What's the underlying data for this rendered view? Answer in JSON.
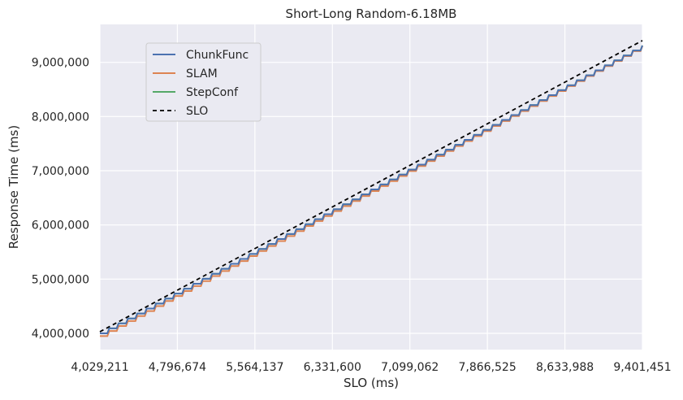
{
  "chart_data": {
    "type": "line",
    "title": "Short-Long Random-6.18MB",
    "xlabel": "SLO (ms)",
    "ylabel": "Response Time (ms)",
    "xlim": [
      4029211,
      9401451
    ],
    "ylim": [
      3700000,
      9700000
    ],
    "xticks": [
      4029211,
      4796674,
      5564137,
      6331600,
      7099062,
      7866525,
      8633988,
      9401451
    ],
    "xtick_labels": [
      "4,029,211",
      "4,796,674",
      "5,564,137",
      "6,331,600",
      "7,099,062",
      "7,866,525",
      "8,633,988",
      "9,401,451"
    ],
    "yticks": [
      4000000,
      5000000,
      6000000,
      7000000,
      8000000,
      9000000
    ],
    "ytick_labels": [
      "4,000,000",
      "5,000,000",
      "6,000,000",
      "7,000,000",
      "8,000,000",
      "9,000,000"
    ],
    "grid": true,
    "legend_position": "upper-left",
    "series": [
      {
        "name": "ChunkFunc",
        "color": "#4c72b0",
        "style": "step",
        "steps": 58,
        "x": [
          4029211,
          9401451
        ],
        "y": [
          4000000,
          9310000
        ]
      },
      {
        "name": "SLAM",
        "color": "#dd8452",
        "style": "step",
        "steps": 58,
        "x": [
          4029211,
          9401451
        ],
        "y": [
          3950000,
          9300000
        ]
      },
      {
        "name": "StepConf",
        "color": "#55a868",
        "style": "step",
        "steps": 58,
        "x": [
          4029211,
          9401451
        ],
        "y": [
          4000000,
          9310000
        ]
      },
      {
        "name": "SLO",
        "color": "#000000",
        "style": "dashed",
        "x": [
          4029211,
          9401451
        ],
        "y": [
          4029211,
          9401451
        ]
      }
    ]
  }
}
